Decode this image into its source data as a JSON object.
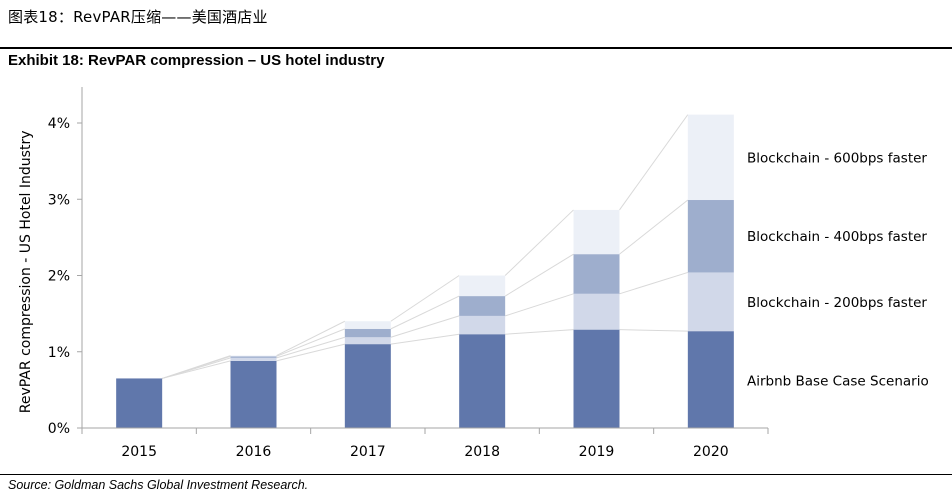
{
  "header": {
    "figure_caption": "图表18：RevPAR压缩——美国酒店业",
    "exhibit_title": "Exhibit 18: RevPAR compression –  US hotel industry"
  },
  "footer": {
    "source": "Source: Goldman Sachs Global Investment Research."
  },
  "colors": {
    "base": "#6077ab",
    "bps200": "#d1d8e9",
    "bps400": "#9eaecd",
    "bps600": "#ecf0f7",
    "connector": "#d9d9d9",
    "axis": "#a6a6a6"
  },
  "chart_data": {
    "type": "bar",
    "stacked": true,
    "ylabel": "RevPAR compression - US Hotel Industry",
    "xlabel": "",
    "ylim": [
      0,
      4.2
    ],
    "yticks": [
      0,
      1,
      2,
      3,
      4
    ],
    "ytick_labels": [
      "0%",
      "1%",
      "2%",
      "3%",
      "4%"
    ],
    "categories": [
      "2015",
      "2016",
      "2017",
      "2018",
      "2019",
      "2020"
    ],
    "series": [
      {
        "name": "Airbnb Base Case Scenario",
        "values": [
          0.65,
          0.88,
          1.1,
          1.23,
          1.29,
          1.27
        ]
      },
      {
        "name": "Blockchain - 200bps faster",
        "values": [
          0,
          0.04,
          0.09,
          0.24,
          0.47,
          0.77
        ]
      },
      {
        "name": "Blockchain - 400bps faster",
        "values": [
          0,
          0.02,
          0.11,
          0.26,
          0.52,
          0.95
        ]
      },
      {
        "name": "Blockchain - 600bps faster",
        "values": [
          0,
          0.01,
          0.1,
          0.27,
          0.58,
          1.12
        ]
      }
    ],
    "legend_order": [
      "Blockchain - 600bps faster",
      "Blockchain - 400bps faster",
      "Blockchain - 200bps faster",
      "Airbnb Base Case Scenario"
    ],
    "legend_position": "right",
    "grid": false,
    "connector_lines": true
  }
}
